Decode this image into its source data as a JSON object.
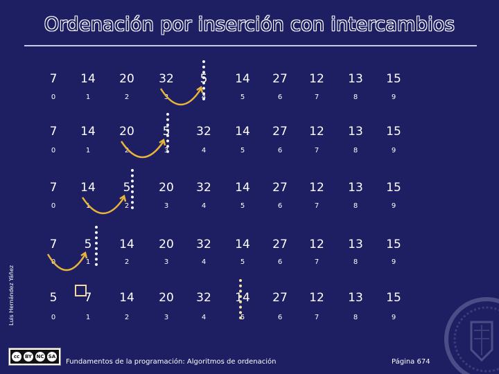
{
  "slide": {
    "title": "Ordenación por inserción con intercambios",
    "author": "Luis Hernández Yáñez",
    "footer": "Fundamentos de la programación: Algoritmos de ordenación",
    "page": "Página 674",
    "license": {
      "labels": [
        "BY",
        "NC",
        "SA"
      ],
      "icon": "creative-commons-icon"
    },
    "seal_icon": "university-seal-icon"
  },
  "steps": [
    {
      "values": [
        "7",
        "14",
        "20",
        "32",
        "5",
        "14",
        "27",
        "12",
        "13",
        "15"
      ],
      "indices": [
        "0",
        "1",
        "2",
        "3",
        "4",
        "5",
        "6",
        "7",
        "8",
        "9"
      ],
      "swap": [
        3,
        4
      ]
    },
    {
      "values": [
        "7",
        "14",
        "20",
        "5",
        "32",
        "14",
        "27",
        "12",
        "13",
        "15"
      ],
      "indices": [
        "0",
        "1",
        "2",
        "3",
        "4",
        "5",
        "6",
        "7",
        "8",
        "9"
      ],
      "swap": [
        2,
        3
      ]
    },
    {
      "values": [
        "7",
        "14",
        "5",
        "20",
        "32",
        "14",
        "27",
        "12",
        "13",
        "15"
      ],
      "indices": [
        "0",
        "1",
        "2",
        "3",
        "4",
        "5",
        "6",
        "7",
        "8",
        "9"
      ],
      "swap": [
        1,
        2
      ]
    },
    {
      "values": [
        "7",
        "5",
        "14",
        "20",
        "32",
        "14",
        "27",
        "12",
        "13",
        "15"
      ],
      "indices": [
        "0",
        "1",
        "2",
        "3",
        "4",
        "5",
        "6",
        "7",
        "8",
        "9"
      ],
      "swap": [
        0,
        1
      ]
    },
    {
      "values": [
        "5",
        "7",
        "14",
        "20",
        "32",
        "14",
        "27",
        "12",
        "13",
        "15"
      ],
      "indices": [
        "0",
        "1",
        "2",
        "3",
        "4",
        "5",
        "6",
        "7",
        "8",
        "9"
      ],
      "swap": null
    }
  ],
  "colors": {
    "background": "#1d1f62",
    "arrow": "#e8b53a",
    "text": "#ffffff"
  }
}
